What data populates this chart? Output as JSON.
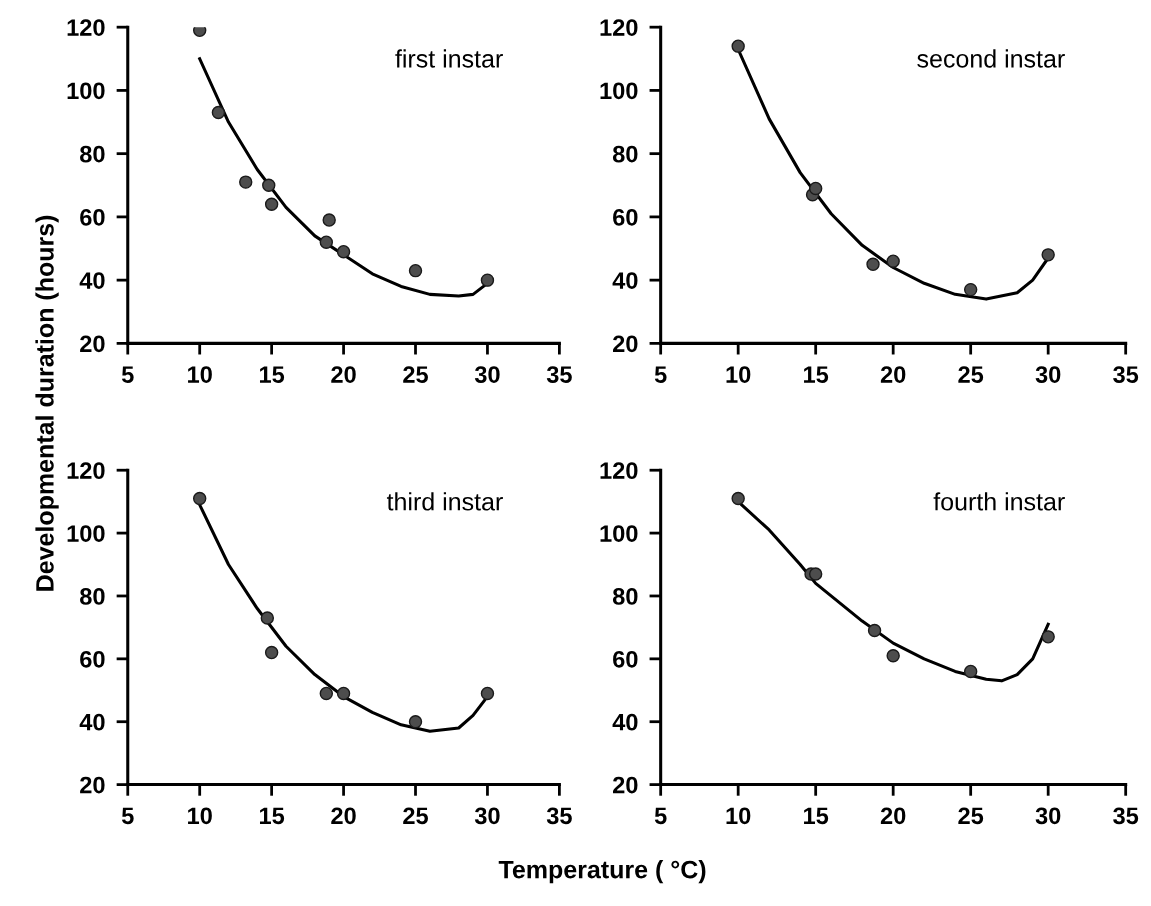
{
  "chart_data": [
    {
      "type": "scatter",
      "ylabel": "Developmental duration (hours)",
      "annotations": [
        "first instar"
      ],
      "xlim": [
        5,
        35
      ],
      "ylim": [
        20,
        120
      ],
      "xticks": [
        5,
        10,
        15,
        20,
        25,
        30,
        35
      ],
      "yticks": [
        20,
        40,
        60,
        80,
        100,
        120
      ],
      "grid": false,
      "legend": false,
      "series": [
        {
          "marker": "circle",
          "color": "#4d4d4d",
          "x": [
            10,
            11.3,
            13.2,
            14.8,
            15,
            18.8,
            19,
            20,
            25,
            30
          ],
          "values": [
            119,
            93,
            71,
            70,
            64,
            52,
            59,
            49,
            43,
            40
          ]
        },
        {
          "type": "line",
          "color": "#000000",
          "line_style": "solid",
          "x": [
            10,
            12,
            14,
            16,
            18,
            20,
            22,
            24,
            26,
            28,
            29,
            30
          ],
          "values": [
            110,
            90,
            75,
            63,
            54,
            48,
            42,
            38,
            35.5,
            35,
            35.5,
            39
          ]
        }
      ]
    },
    {
      "type": "scatter",
      "annotations": [
        "second instar"
      ],
      "xlim": [
        5,
        35
      ],
      "ylim": [
        20,
        120
      ],
      "xticks": [
        5,
        10,
        15,
        20,
        25,
        30,
        35
      ],
      "yticks": [
        20,
        40,
        60,
        80,
        100,
        120
      ],
      "grid": false,
      "legend": false,
      "series": [
        {
          "marker": "circle",
          "color": "#4d4d4d",
          "x": [
            10,
            14.8,
            15,
            18.7,
            20,
            25,
            30
          ],
          "values": [
            114,
            67,
            69,
            45,
            46,
            37,
            48
          ]
        },
        {
          "type": "line",
          "color": "#000000",
          "line_style": "solid",
          "x": [
            10,
            12,
            14,
            16,
            18,
            20,
            22,
            24,
            26,
            28,
            29,
            30
          ],
          "values": [
            113,
            91,
            74,
            61,
            51,
            44,
            39,
            35.5,
            34,
            36,
            40,
            47
          ]
        }
      ]
    },
    {
      "type": "scatter",
      "xlabel": "Temperature ( °C)",
      "annotations": [
        "third instar"
      ],
      "xlim": [
        5,
        35
      ],
      "ylim": [
        20,
        120
      ],
      "xticks": [
        5,
        10,
        15,
        20,
        25,
        30,
        35
      ],
      "yticks": [
        20,
        40,
        60,
        80,
        100,
        120
      ],
      "grid": false,
      "legend": false,
      "series": [
        {
          "marker": "circle",
          "color": "#4d4d4d",
          "x": [
            10,
            14.7,
            15,
            18.8,
            20,
            25,
            30
          ],
          "values": [
            111,
            73,
            62,
            49,
            49,
            40,
            49
          ]
        },
        {
          "type": "line",
          "color": "#000000",
          "line_style": "solid",
          "x": [
            10,
            12,
            14,
            16,
            18,
            20,
            22,
            24,
            26,
            28,
            29,
            30
          ],
          "values": [
            109,
            90,
            76,
            64,
            55,
            48,
            43,
            39,
            37,
            38,
            42,
            48
          ]
        }
      ]
    },
    {
      "type": "scatter",
      "annotations": [
        "fourth instar"
      ],
      "xlim": [
        5,
        35
      ],
      "ylim": [
        20,
        120
      ],
      "xticks": [
        5,
        10,
        15,
        20,
        25,
        30,
        35
      ],
      "yticks": [
        20,
        40,
        60,
        80,
        100,
        120
      ],
      "grid": false,
      "legend": false,
      "series": [
        {
          "marker": "circle",
          "color": "#4d4d4d",
          "x": [
            10,
            14.7,
            15,
            18.8,
            20,
            25,
            30
          ],
          "values": [
            111,
            87,
            87,
            69,
            61,
            56,
            67
          ]
        },
        {
          "type": "line",
          "color": "#000000",
          "line_style": "solid",
          "x": [
            10,
            12,
            14,
            15,
            18,
            20,
            22,
            24,
            26,
            27,
            28,
            29,
            30
          ],
          "values": [
            110,
            101,
            90,
            84,
            72,
            65,
            60,
            56,
            53.5,
            53,
            55,
            60,
            71
          ]
        }
      ]
    }
  ]
}
